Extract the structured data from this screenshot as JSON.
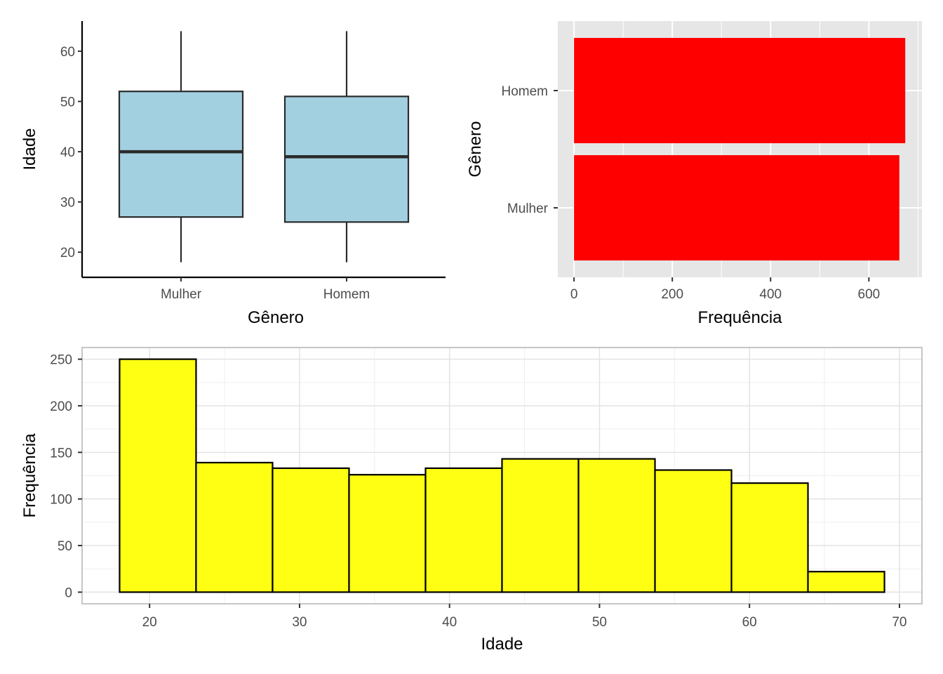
{
  "colors": {
    "box_fill": "#a2d0e0",
    "box_stroke": "#2b2b2b",
    "bar_fill": "#ff0000",
    "hist_fill": "#ffff14",
    "hist_stroke": "#000000",
    "panel_grey": "#e6e6e6",
    "grid_white": "#ffffff",
    "grid_light": "#e3e3e3"
  },
  "chart_data": [
    {
      "type": "boxplot",
      "categories": [
        "Mulher",
        "Homem"
      ],
      "boxes": [
        {
          "category": "Mulher",
          "min": 18,
          "q1": 27,
          "median": 40,
          "q3": 52,
          "max": 64
        },
        {
          "category": "Homem",
          "min": 18,
          "q1": 26,
          "median": 39,
          "q3": 51,
          "max": 64
        }
      ],
      "xlabel": "Gênero",
      "ylabel": "Idade",
      "ylim": [
        15,
        66
      ],
      "yticks": [
        20,
        30,
        40,
        50,
        60
      ],
      "grid": false
    },
    {
      "type": "bar",
      "orientation": "horizontal",
      "categories": [
        "Mulher",
        "Homem"
      ],
      "values": [
        662,
        674
      ],
      "xlabel": "Frequência",
      "ylabel": "Gênero",
      "xlim": [
        -33,
        708
      ],
      "xticks": [
        0,
        200,
        400,
        600
      ],
      "grid": true
    },
    {
      "type": "histogram",
      "bins": [
        {
          "x0": 18,
          "x1": 23.1,
          "count": 250
        },
        {
          "x0": 23.1,
          "x1": 28.2,
          "count": 139
        },
        {
          "x0": 28.2,
          "x1": 33.3,
          "count": 133
        },
        {
          "x0": 33.3,
          "x1": 38.4,
          "count": 126
        },
        {
          "x0": 38.4,
          "x1": 43.5,
          "count": 133
        },
        {
          "x0": 43.5,
          "x1": 48.6,
          "count": 143
        },
        {
          "x0": 48.6,
          "x1": 53.7,
          "count": 143
        },
        {
          "x0": 53.7,
          "x1": 58.8,
          "count": 131
        },
        {
          "x0": 58.8,
          "x1": 63.9,
          "count": 117
        },
        {
          "x0": 63.9,
          "x1": 69,
          "count": 22
        }
      ],
      "xlabel": "Idade",
      "ylabel": "Frequência",
      "xlim": [
        15.5,
        71.5
      ],
      "ylim": [
        -12.5,
        262.5
      ],
      "xticks": [
        20,
        30,
        40,
        50,
        60,
        70
      ],
      "yticks": [
        0,
        50,
        100,
        150,
        200,
        250
      ],
      "grid": true
    }
  ]
}
